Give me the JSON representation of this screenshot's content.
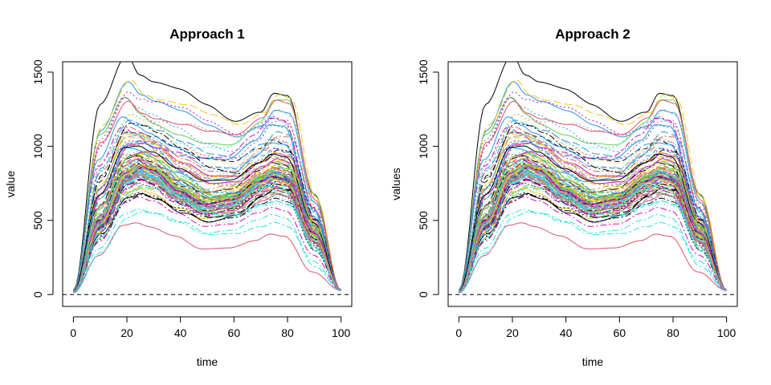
{
  "chart_data": [
    {
      "type": "line",
      "title": "Approach 1",
      "xlabel": "time",
      "ylabel": "value",
      "xlim": [
        -4,
        104
      ],
      "ylim": [
        -80,
        1570
      ],
      "xticks": [
        0,
        20,
        40,
        60,
        80,
        100
      ],
      "yticks": [
        0,
        500,
        1000,
        1500
      ],
      "xtick_labels": [
        "0",
        "20",
        "40",
        "60",
        "80",
        "100"
      ],
      "ytick_labels": [
        "0",
        "500",
        "1000",
        "1500"
      ],
      "reference_line": {
        "y": 0,
        "style": "dashed",
        "color": "#000000"
      },
      "grid": false,
      "legend": "none",
      "n_curves": 120,
      "typical_curve": {
        "x": [
          0,
          10,
          20,
          25,
          30,
          40,
          50,
          60,
          70,
          75,
          80,
          90,
          100
        ],
        "y": [
          20,
          500,
          830,
          880,
          840,
          700,
          610,
          640,
          760,
          800,
          780,
          420,
          30
        ]
      },
      "envelope_upper": {
        "x": [
          0,
          10,
          20,
          25,
          30,
          40,
          50,
          60,
          70,
          75,
          80,
          90,
          100
        ],
        "y": [
          30,
          1240,
          1530,
          1400,
          1360,
          1340,
          1280,
          1210,
          1300,
          1440,
          1420,
          700,
          30
        ]
      },
      "envelope_lower": {
        "x": [
          0,
          10,
          20,
          25,
          30,
          40,
          50,
          60,
          70,
          75,
          80,
          90,
          100
        ],
        "y": [
          10,
          250,
          450,
          470,
          450,
          400,
          320,
          330,
          380,
          420,
          400,
          150,
          25
        ]
      }
    },
    {
      "type": "line",
      "title": "Approach 2",
      "xlabel": "time",
      "ylabel": "values",
      "xlim": [
        -4,
        104
      ],
      "ylim": [
        -80,
        1570
      ],
      "xticks": [
        0,
        20,
        40,
        60,
        80,
        100
      ],
      "yticks": [
        0,
        500,
        1000,
        1500
      ],
      "xtick_labels": [
        "0",
        "20",
        "40",
        "60",
        "80",
        "100"
      ],
      "ytick_labels": [
        "0",
        "500",
        "1000",
        "1500"
      ],
      "reference_line": {
        "y": 0,
        "style": "dashed",
        "color": "#000000"
      },
      "grid": false,
      "legend": "none",
      "n_curves": 120,
      "typical_curve": {
        "x": [
          0,
          10,
          20,
          25,
          30,
          40,
          50,
          60,
          70,
          75,
          80,
          90,
          100
        ],
        "y": [
          20,
          500,
          830,
          880,
          840,
          700,
          610,
          640,
          760,
          800,
          780,
          420,
          30
        ]
      },
      "envelope_upper": {
        "x": [
          0,
          10,
          20,
          25,
          30,
          40,
          50,
          60,
          70,
          75,
          80,
          90,
          100
        ],
        "y": [
          30,
          1240,
          1530,
          1400,
          1360,
          1340,
          1280,
          1210,
          1300,
          1440,
          1420,
          700,
          30
        ]
      },
      "envelope_lower": {
        "x": [
          0,
          10,
          20,
          25,
          30,
          40,
          50,
          60,
          70,
          75,
          80,
          90,
          100
        ],
        "y": [
          10,
          250,
          450,
          470,
          450,
          400,
          320,
          330,
          380,
          420,
          400,
          150,
          25
        ]
      }
    }
  ],
  "palette": [
    "#000000",
    "#DF536B",
    "#61D04F",
    "#2297E6",
    "#28E2E5",
    "#CD0BBC",
    "#F5C710",
    "#9E9E9E"
  ]
}
